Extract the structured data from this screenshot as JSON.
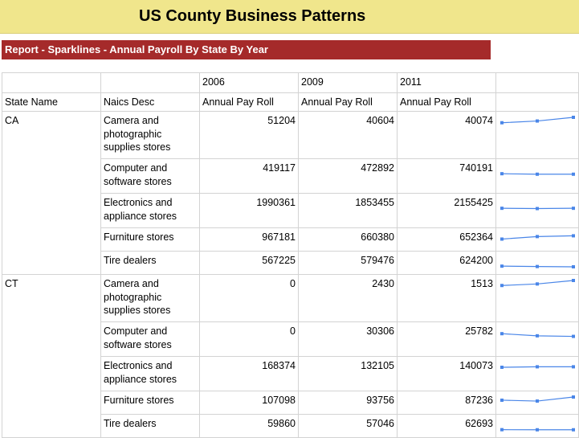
{
  "title": "US County Business Patterns",
  "report_title": "Report - Sparklines - Annual Payroll By State By Year",
  "years": [
    "2006",
    "2009",
    "2011"
  ],
  "headers": {
    "state": "State Name",
    "naics": "Naics Desc",
    "metric": "Annual Pay Roll"
  },
  "colors": {
    "title_bg": "#f0e68c",
    "report_bg": "#a52a2a",
    "spark": "#4a86e8"
  },
  "states": [
    {
      "name": "CA",
      "rows": [
        {
          "naics": "Camera and photographic supplies stores",
          "values": [
            "51204",
            "40604",
            "40074"
          ]
        },
        {
          "naics": "Computer and software stores",
          "values": [
            "419117",
            "472892",
            "740191"
          ]
        },
        {
          "naics": "Electronics and appliance stores",
          "values": [
            "1990361",
            "1853455",
            "2155425"
          ]
        },
        {
          "naics": "Furniture stores",
          "values": [
            "967181",
            "660380",
            "652364"
          ]
        },
        {
          "naics": "Tire dealers",
          "values": [
            "567225",
            "579476",
            "624200"
          ]
        }
      ]
    },
    {
      "name": "CT",
      "rows": [
        {
          "naics": "Camera and photographic supplies stores",
          "values": [
            "0",
            "2430",
            "1513"
          ]
        },
        {
          "naics": "Computer and software stores",
          "values": [
            "0",
            "30306",
            "25782"
          ]
        },
        {
          "naics": "Electronics and appliance stores",
          "values": [
            "168374",
            "132105",
            "140073"
          ]
        },
        {
          "naics": "Furniture stores",
          "values": [
            "107098",
            "93756",
            "87236"
          ]
        },
        {
          "naics": "Tire dealers",
          "values": [
            "59860",
            "57046",
            "62693"
          ]
        }
      ]
    }
  ],
  "sparklines": [
    [
      0.56,
      0.38,
      0.0
    ],
    [
      0.93,
      0.98,
      0.98
    ],
    [
      0.93,
      0.96,
      0.93
    ],
    [
      0.54,
      0.28,
      0.2
    ],
    [
      0.93,
      0.97,
      1.0
    ],
    [
      0.52,
      0.36,
      0.0
    ],
    [
      0.6,
      0.82,
      0.88
    ],
    [
      0.5,
      0.45,
      0.45
    ],
    [
      0.33,
      0.42,
      0.0
    ],
    [
      0.97,
      0.98,
      0.98
    ]
  ]
}
